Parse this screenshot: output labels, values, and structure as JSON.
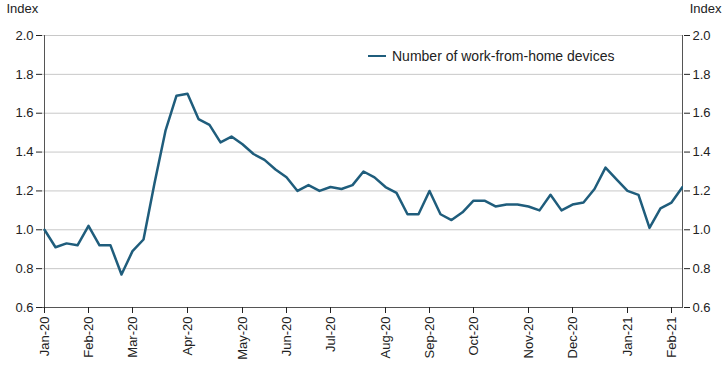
{
  "chart_data": {
    "type": "line",
    "y_label": "Index",
    "categories": [
      "Jan-20",
      null,
      null,
      null,
      "Feb-20",
      null,
      null,
      null,
      "Mar-20",
      null,
      null,
      null,
      null,
      "Apr-20",
      null,
      null,
      null,
      null,
      "May-20",
      null,
      null,
      null,
      "Jun-20",
      null,
      null,
      null,
      "Jul-20",
      null,
      null,
      null,
      null,
      "Aug-20",
      null,
      null,
      null,
      "Sep-20",
      null,
      null,
      null,
      "Oct-20",
      null,
      null,
      null,
      null,
      "Nov-20",
      null,
      null,
      null,
      "Dec-20",
      null,
      null,
      null,
      null,
      "Jan-21",
      null,
      null,
      null,
      "Feb-21",
      null
    ],
    "series": [
      {
        "name": "Number of work-from-home devices",
        "color": "#1f5d7c",
        "values": [
          1.0,
          0.91,
          0.93,
          0.92,
          1.02,
          0.92,
          0.92,
          0.77,
          0.89,
          0.95,
          1.24,
          1.51,
          1.69,
          1.7,
          1.57,
          1.54,
          1.45,
          1.48,
          1.44,
          1.39,
          1.36,
          1.31,
          1.27,
          1.2,
          1.23,
          1.2,
          1.22,
          1.21,
          1.23,
          1.3,
          1.27,
          1.22,
          1.19,
          1.08,
          1.08,
          1.2,
          1.08,
          1.05,
          1.09,
          1.15,
          1.15,
          1.12,
          1.13,
          1.13,
          1.12,
          1.1,
          1.18,
          1.1,
          1.13,
          1.14,
          1.21,
          1.32,
          1.26,
          1.2,
          1.18,
          1.01,
          1.11,
          1.14,
          1.22
        ]
      }
    ],
    "ylim": [
      0.6,
      2.0
    ],
    "yticks": [
      0.6,
      0.8,
      {
        "value": 1.0,
        "label": "1.0"
      },
      1.2,
      1.4,
      1.6,
      1.8,
      {
        "value": 2.0,
        "label": "2.0"
      }
    ],
    "grid": true,
    "legend": "top-right"
  }
}
